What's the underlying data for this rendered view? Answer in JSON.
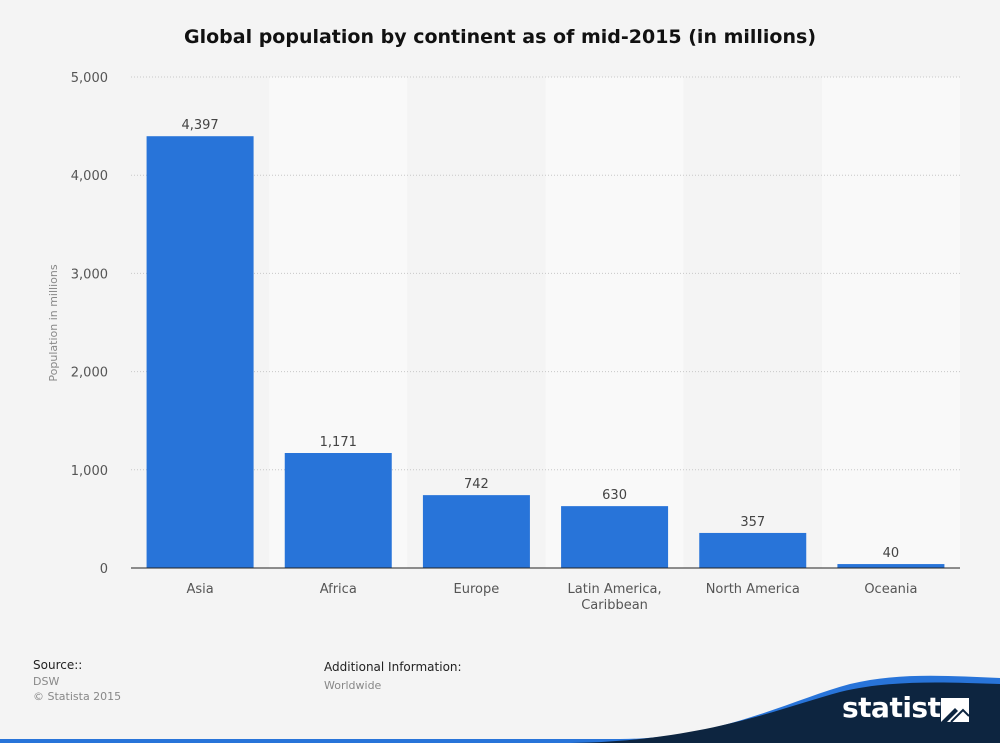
{
  "chart_data": {
    "type": "bar",
    "title": "Global population by continent as of mid-2015 (in millions)",
    "ylabel": "Population in millions",
    "xlabel": "",
    "categories": [
      "Asia",
      "Africa",
      "Europe",
      "Latin America,\nCaribbean",
      "North America",
      "Oceania"
    ],
    "values": [
      4397,
      1171,
      742,
      630,
      357,
      40
    ],
    "value_labels": [
      "4,397",
      "1,171",
      "742",
      "630",
      "357",
      "40"
    ],
    "ylim": [
      0,
      5000
    ],
    "yticks": [
      0,
      1000,
      2000,
      3000,
      4000,
      5000
    ],
    "ytick_labels": [
      "0",
      "1,000",
      "2,000",
      "3,000",
      "4,000",
      "5,000"
    ],
    "grid": true,
    "legend": "none",
    "bar_color": "#2874d9"
  },
  "footer": {
    "source_label": "Source::",
    "source_value": "DSW",
    "copyright": "© Statista 2015",
    "additional_label": "Additional Information:",
    "additional_value": "Worldwide"
  },
  "brand": {
    "name": "statista",
    "logo_icon": "statista-logo-icon",
    "wave_color": "#2874d9",
    "dark_color": "#0d2540"
  }
}
